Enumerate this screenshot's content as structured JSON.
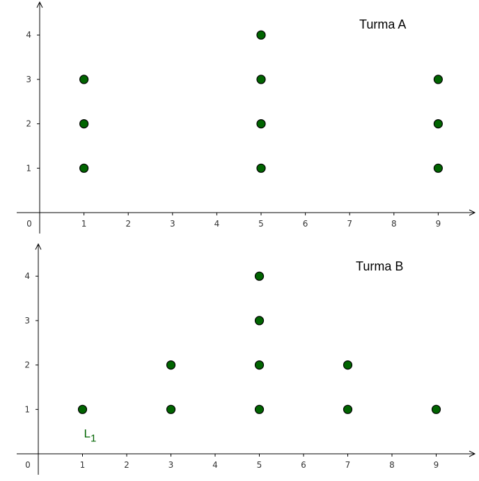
{
  "chart_data": [
    {
      "type": "scatter",
      "title": "Turma A",
      "x_ticks": [
        "0",
        "1",
        "2",
        "3",
        "4",
        "5",
        "6",
        "7",
        "8",
        "9"
      ],
      "y_ticks": [
        "1",
        "2",
        "3",
        "4"
      ],
      "xlim": [
        0,
        10
      ],
      "ylim": [
        0,
        4.5
      ],
      "grid": false,
      "point_color": "#006400",
      "points": [
        {
          "x": 1,
          "y": 1
        },
        {
          "x": 1,
          "y": 2
        },
        {
          "x": 1,
          "y": 3
        },
        {
          "x": 5,
          "y": 1
        },
        {
          "x": 5,
          "y": 2
        },
        {
          "x": 5,
          "y": 3
        },
        {
          "x": 5,
          "y": 4
        },
        {
          "x": 9,
          "y": 1
        },
        {
          "x": 9,
          "y": 2
        },
        {
          "x": 9,
          "y": 3
        }
      ]
    },
    {
      "type": "scatter",
      "title": "Turma B",
      "x_ticks": [
        "0",
        "1",
        "2",
        "3",
        "4",
        "5",
        "6",
        "7",
        "8",
        "9"
      ],
      "y_ticks": [
        "1",
        "2",
        "3",
        "4"
      ],
      "xlim": [
        0,
        10
      ],
      "ylim": [
        0,
        4.5
      ],
      "grid": false,
      "point_color": "#006400",
      "points": [
        {
          "x": 1,
          "y": 1
        },
        {
          "x": 3,
          "y": 1
        },
        {
          "x": 3,
          "y": 2
        },
        {
          "x": 5,
          "y": 1
        },
        {
          "x": 5,
          "y": 2
        },
        {
          "x": 5,
          "y": 3
        },
        {
          "x": 5,
          "y": 4
        },
        {
          "x": 7,
          "y": 1
        },
        {
          "x": 7,
          "y": 2
        },
        {
          "x": 9,
          "y": 1
        }
      ],
      "annotations": [
        {
          "text": "L",
          "subscript": "1",
          "x": 1,
          "y": 1,
          "color": "#006400"
        }
      ]
    }
  ]
}
